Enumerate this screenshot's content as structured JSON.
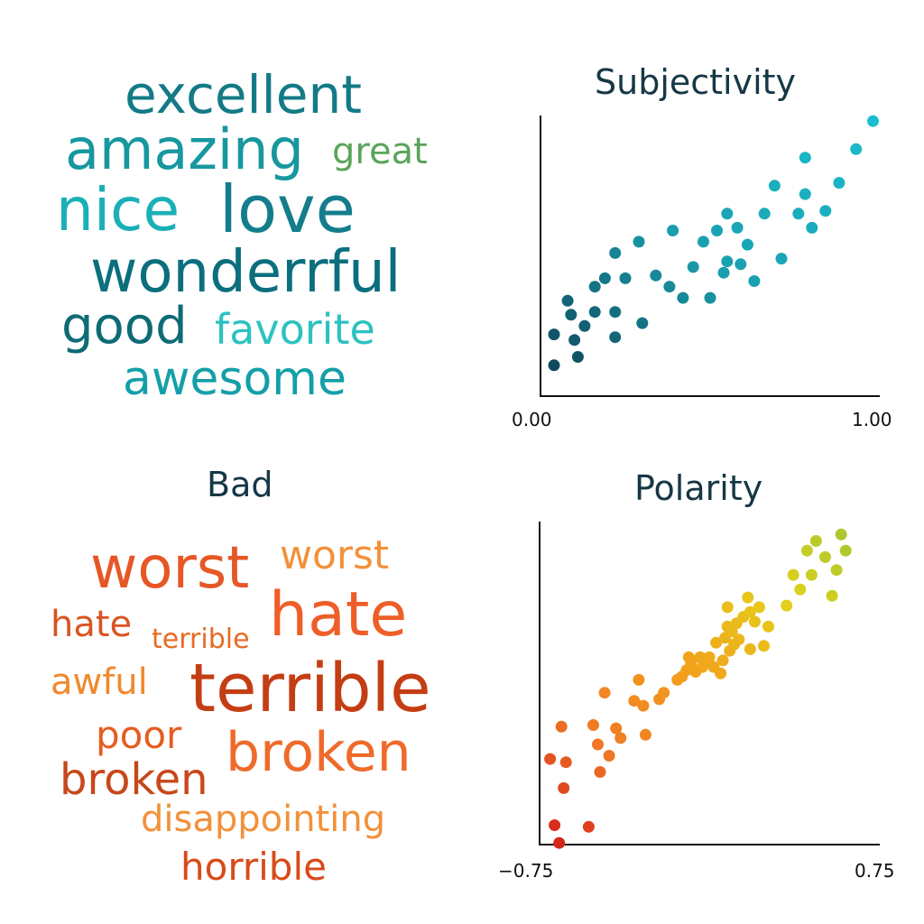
{
  "colors": {
    "title": "#163845",
    "axis": "#111111",
    "positive_palette": [
      "#0d7a85",
      "#16a9b8",
      "#5aa55a"
    ],
    "negative_palette": [
      "#c2421b",
      "#ef6a2a",
      "#f08a2f"
    ]
  },
  "word_clouds": {
    "good": {
      "words": [
        {
          "text": "excellent",
          "color": "#137a86"
        },
        {
          "text": "amazing",
          "color": "#17979f"
        },
        {
          "text": "great",
          "color": "#5aa55a"
        },
        {
          "text": "nice",
          "color": "#1bb0b8"
        },
        {
          "text": "love",
          "color": "#147d8b"
        },
        {
          "text": "wonderrful",
          "color": "#0b6f7d"
        },
        {
          "text": "good",
          "color": "#0e6b76"
        },
        {
          "text": "favorite",
          "color": "#2cc2c1"
        },
        {
          "text": "awesome",
          "color": "#139fa8"
        }
      ]
    },
    "bad": {
      "title": "Bad",
      "words": [
        {
          "text": "worst",
          "color": "#e65726"
        },
        {
          "text": "worst",
          "color": "#f2913a"
        },
        {
          "text": "hate",
          "color": "#d95420"
        },
        {
          "text": "terrible",
          "color": "#e76a25"
        },
        {
          "text": "hate",
          "color": "#ef5e28"
        },
        {
          "text": "awful",
          "color": "#ef8a2e"
        },
        {
          "text": "terrible",
          "color": "#c43e14"
        },
        {
          "text": "poor",
          "color": "#e65d20"
        },
        {
          "text": "broken",
          "color": "#ef6a2b"
        },
        {
          "text": "broken",
          "color": "#c8471a"
        },
        {
          "text": "disappointing",
          "color": "#f2913a"
        },
        {
          "text": "horrible",
          "color": "#d84b1a"
        }
      ]
    }
  },
  "chart_data": [
    {
      "type": "scatter",
      "title": "Subjectivity",
      "xlim": [
        0.0,
        1.0
      ],
      "ylim": [
        0.0,
        1.0
      ],
      "x_tick_labels": [
        "0.00",
        "1.00"
      ],
      "grid": false,
      "color_scale": [
        "#0d3a4d",
        "#1aa0b0",
        "#1bbfd0"
      ],
      "points": [
        {
          "x": 0.04,
          "y": 0.11
        },
        {
          "x": 0.11,
          "y": 0.14
        },
        {
          "x": 0.04,
          "y": 0.22
        },
        {
          "x": 0.1,
          "y": 0.2
        },
        {
          "x": 0.13,
          "y": 0.25
        },
        {
          "x": 0.09,
          "y": 0.29
        },
        {
          "x": 0.16,
          "y": 0.3
        },
        {
          "x": 0.22,
          "y": 0.21
        },
        {
          "x": 0.3,
          "y": 0.26
        },
        {
          "x": 0.22,
          "y": 0.3
        },
        {
          "x": 0.08,
          "y": 0.34
        },
        {
          "x": 0.16,
          "y": 0.39
        },
        {
          "x": 0.19,
          "y": 0.42
        },
        {
          "x": 0.25,
          "y": 0.42
        },
        {
          "x": 0.34,
          "y": 0.43
        },
        {
          "x": 0.42,
          "y": 0.35
        },
        {
          "x": 0.5,
          "y": 0.35
        },
        {
          "x": 0.38,
          "y": 0.39
        },
        {
          "x": 0.59,
          "y": 0.47
        },
        {
          "x": 0.63,
          "y": 0.41
        },
        {
          "x": 0.71,
          "y": 0.49
        },
        {
          "x": 0.45,
          "y": 0.46
        },
        {
          "x": 0.54,
          "y": 0.44
        },
        {
          "x": 0.55,
          "y": 0.48
        },
        {
          "x": 0.22,
          "y": 0.51
        },
        {
          "x": 0.29,
          "y": 0.55
        },
        {
          "x": 0.39,
          "y": 0.59
        },
        {
          "x": 0.48,
          "y": 0.55
        },
        {
          "x": 0.52,
          "y": 0.59
        },
        {
          "x": 0.61,
          "y": 0.54
        },
        {
          "x": 0.58,
          "y": 0.6
        },
        {
          "x": 0.55,
          "y": 0.65
        },
        {
          "x": 0.66,
          "y": 0.65
        },
        {
          "x": 0.76,
          "y": 0.65
        },
        {
          "x": 0.84,
          "y": 0.66
        },
        {
          "x": 0.78,
          "y": 0.72
        },
        {
          "x": 0.69,
          "y": 0.75
        },
        {
          "x": 0.8,
          "y": 0.6
        },
        {
          "x": 0.88,
          "y": 0.76
        },
        {
          "x": 0.78,
          "y": 0.85
        },
        {
          "x": 0.93,
          "y": 0.88
        },
        {
          "x": 0.98,
          "y": 0.98
        }
      ]
    },
    {
      "type": "scatter",
      "title": "Polarity",
      "xlim": [
        -0.75,
        0.75
      ],
      "ylim": [
        -1.0,
        1.0
      ],
      "x_tick_labels": [
        "−0.75",
        "0.75"
      ],
      "grid": false,
      "color_scale": [
        "#d11a1a",
        "#f07a25",
        "#f2a21b",
        "#e3d21a",
        "#93c23a"
      ],
      "points": [
        {
          "x": -0.7,
          "y": -0.47
        },
        {
          "x": -0.68,
          "y": -0.88
        },
        {
          "x": -0.66,
          "y": -0.99
        },
        {
          "x": -0.65,
          "y": -0.27
        },
        {
          "x": -0.64,
          "y": -0.65
        },
        {
          "x": -0.63,
          "y": -0.49
        },
        {
          "x": -0.53,
          "y": -0.89
        },
        {
          "x": -0.51,
          "y": -0.26
        },
        {
          "x": -0.49,
          "y": -0.38
        },
        {
          "x": -0.48,
          "y": -0.55
        },
        {
          "x": -0.46,
          "y": -0.06
        },
        {
          "x": -0.44,
          "y": -0.45
        },
        {
          "x": -0.41,
          "y": -0.28
        },
        {
          "x": -0.39,
          "y": -0.34
        },
        {
          "x": -0.33,
          "y": -0.11
        },
        {
          "x": -0.31,
          "y": 0.02
        },
        {
          "x": -0.29,
          "y": -0.14
        },
        {
          "x": -0.28,
          "y": -0.32
        },
        {
          "x": -0.22,
          "y": -0.1
        },
        {
          "x": -0.2,
          "y": -0.06
        },
        {
          "x": -0.14,
          "y": 0.02
        },
        {
          "x": -0.12,
          "y": 0.04
        },
        {
          "x": -0.1,
          "y": 0.08
        },
        {
          "x": -0.09,
          "y": 0.16
        },
        {
          "x": -0.08,
          "y": 0.12
        },
        {
          "x": -0.06,
          "y": 0.07
        },
        {
          "x": -0.04,
          "y": 0.16
        },
        {
          "x": -0.03,
          "y": 0.1
        },
        {
          "x": -0.02,
          "y": 0.12
        },
        {
          "x": 0.0,
          "y": 0.16
        },
        {
          "x": 0.02,
          "y": 0.1
        },
        {
          "x": 0.03,
          "y": 0.25
        },
        {
          "x": 0.05,
          "y": 0.06
        },
        {
          "x": 0.06,
          "y": 0.14
        },
        {
          "x": 0.07,
          "y": 0.28
        },
        {
          "x": 0.08,
          "y": 0.35
        },
        {
          "x": 0.08,
          "y": 0.47
        },
        {
          "x": 0.09,
          "y": 0.2
        },
        {
          "x": 0.1,
          "y": 0.32
        },
        {
          "x": 0.11,
          "y": 0.24
        },
        {
          "x": 0.12,
          "y": 0.37
        },
        {
          "x": 0.13,
          "y": 0.27
        },
        {
          "x": 0.15,
          "y": 0.41
        },
        {
          "x": 0.17,
          "y": 0.53
        },
        {
          "x": 0.18,
          "y": 0.44
        },
        {
          "x": 0.18,
          "y": 0.21
        },
        {
          "x": 0.2,
          "y": 0.38
        },
        {
          "x": 0.22,
          "y": 0.47
        },
        {
          "x": 0.24,
          "y": 0.23
        },
        {
          "x": 0.26,
          "y": 0.35
        },
        {
          "x": 0.34,
          "y": 0.48
        },
        {
          "x": 0.37,
          "y": 0.67
        },
        {
          "x": 0.4,
          "y": 0.58
        },
        {
          "x": 0.43,
          "y": 0.82
        },
        {
          "x": 0.45,
          "y": 0.67
        },
        {
          "x": 0.47,
          "y": 0.88
        },
        {
          "x": 0.51,
          "y": 0.78
        },
        {
          "x": 0.54,
          "y": 0.54
        },
        {
          "x": 0.56,
          "y": 0.7
        },
        {
          "x": 0.58,
          "y": 0.92
        },
        {
          "x": 0.6,
          "y": 0.82
        }
      ]
    }
  ]
}
